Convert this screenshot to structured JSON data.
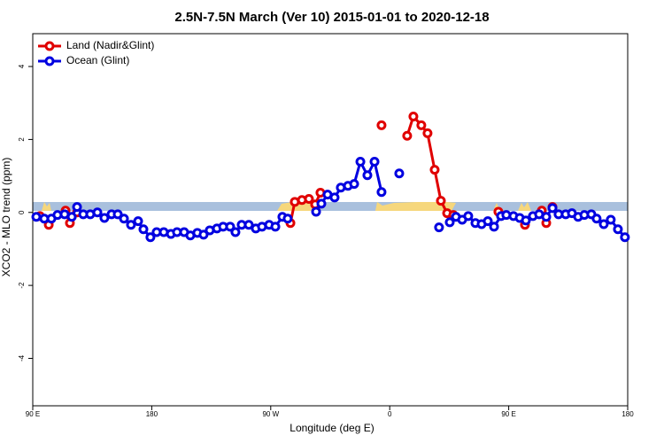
{
  "chart_data": {
    "type": "line",
    "title": "2.5N-7.5N March (Ver 10)   2015-01-01 to 2020-12-18",
    "xlabel": "Longitude (deg E)",
    "ylabel": "XCO2 - MLO trend (ppm)",
    "xlim": [
      90,
      540
    ],
    "ylim": [
      -5.3,
      4.9
    ],
    "xticks": [
      {
        "value": 90,
        "label": "90 E"
      },
      180,
      {
        "value": 270,
        "label": "90 W"
      },
      {
        "value": 360,
        "label": "0"
      },
      {
        "value": 450,
        "label": "90 E"
      },
      {
        "value": 540,
        "label": "180"
      }
    ],
    "yticks": [
      -4,
      -2,
      0,
      2,
      4
    ],
    "legend": "top-left",
    "series": [
      {
        "name": "Land (Nadir&Glint)",
        "color": "#e00000",
        "x": [
          95.4,
          null,
          102.1,
          null,
          114.8,
          118.1,
          null,
          123.5,
          null,
          284.9,
          288.2,
          293.6,
          298.9,
          303.6,
          307.6,
          null,
          353.8,
          null,
          373.2,
          377.9,
          383.9,
          388.6,
          394.0,
          398.7,
          403.4,
          408.1,
          null,
          442.2,
          null,
          462.3,
          null,
          475.0,
          478.4,
          null,
          483.1
        ],
        "values": [
          -0.1,
          null,
          -0.34,
          null,
          0.05,
          -0.29,
          null,
          0.0,
          null,
          -0.29,
          0.29,
          0.34,
          0.37,
          0.22,
          0.54,
          null,
          2.39,
          null,
          2.1,
          2.63,
          2.39,
          2.17,
          1.17,
          0.32,
          -0.02,
          -0.07,
          null,
          0.02,
          null,
          -0.34,
          null,
          0.05,
          -0.29,
          null,
          0.15
        ]
      },
      {
        "name": "Ocean (Glint)",
        "color": "#0000e0",
        "x": [
          92.7,
          98.7,
          104.1,
          108.7,
          114.1,
          119.5,
          123.5,
          128.2,
          133.5,
          138.9,
          144.2,
          149.6,
          154.3,
          159.0,
          164.3,
          169.7,
          173.7,
          179.0,
          183.7,
          189.1,
          194.5,
          199.1,
          204.5,
          209.2,
          214.5,
          219.2,
          223.9,
          229.3,
          234.0,
          239.3,
          243.3,
          248.0,
          253.4,
          258.7,
          263.4,
          268.8,
          273.5,
          278.8,
          282.8,
          null,
          304.3,
          308.3,
          313.0,
          318.3,
          323.0,
          328.4,
          333.1,
          337.8,
          343.1,
          348.5,
          353.8,
          null,
          367.2,
          null,
          397.3,
          null,
          405.4,
          410.1,
          414.8,
          419.4,
          424.8,
          429.5,
          434.2,
          438.9,
          444.2,
          448.2,
          453.6,
          458.3,
          463.0,
          468.3,
          473.0,
          478.4,
          483.1,
          487.7,
          493.1,
          497.8,
          502.5,
          507.2,
          512.5,
          516.5,
          521.9,
          527.2,
          532.6,
          537.9
        ],
        "values": [
          -0.12,
          -0.17,
          -0.17,
          -0.07,
          -0.05,
          -0.12,
          0.15,
          -0.05,
          -0.05,
          0,
          -0.15,
          -0.05,
          -0.05,
          -0.17,
          -0.34,
          -0.24,
          -0.46,
          -0.68,
          -0.54,
          -0.54,
          -0.59,
          -0.54,
          -0.54,
          -0.63,
          -0.56,
          -0.61,
          -0.49,
          -0.44,
          -0.39,
          -0.39,
          -0.54,
          -0.34,
          -0.34,
          -0.44,
          -0.39,
          -0.34,
          -0.39,
          -0.12,
          -0.17,
          null,
          0.02,
          0.24,
          0.49,
          0.41,
          0.68,
          0.73,
          0.78,
          1.39,
          1.02,
          1.39,
          0.56,
          null,
          1.07,
          null,
          -0.41,
          null,
          -0.27,
          -0.12,
          -0.2,
          -0.1,
          -0.29,
          -0.32,
          -0.24,
          -0.39,
          -0.1,
          -0.07,
          -0.1,
          -0.15,
          -0.22,
          -0.1,
          -0.05,
          -0.12,
          0.12,
          -0.05,
          -0.05,
          -0.02,
          -0.12,
          -0.07,
          -0.05,
          -0.17,
          -0.32,
          -0.2,
          -0.46,
          -0.68
        ]
      }
    ]
  }
}
